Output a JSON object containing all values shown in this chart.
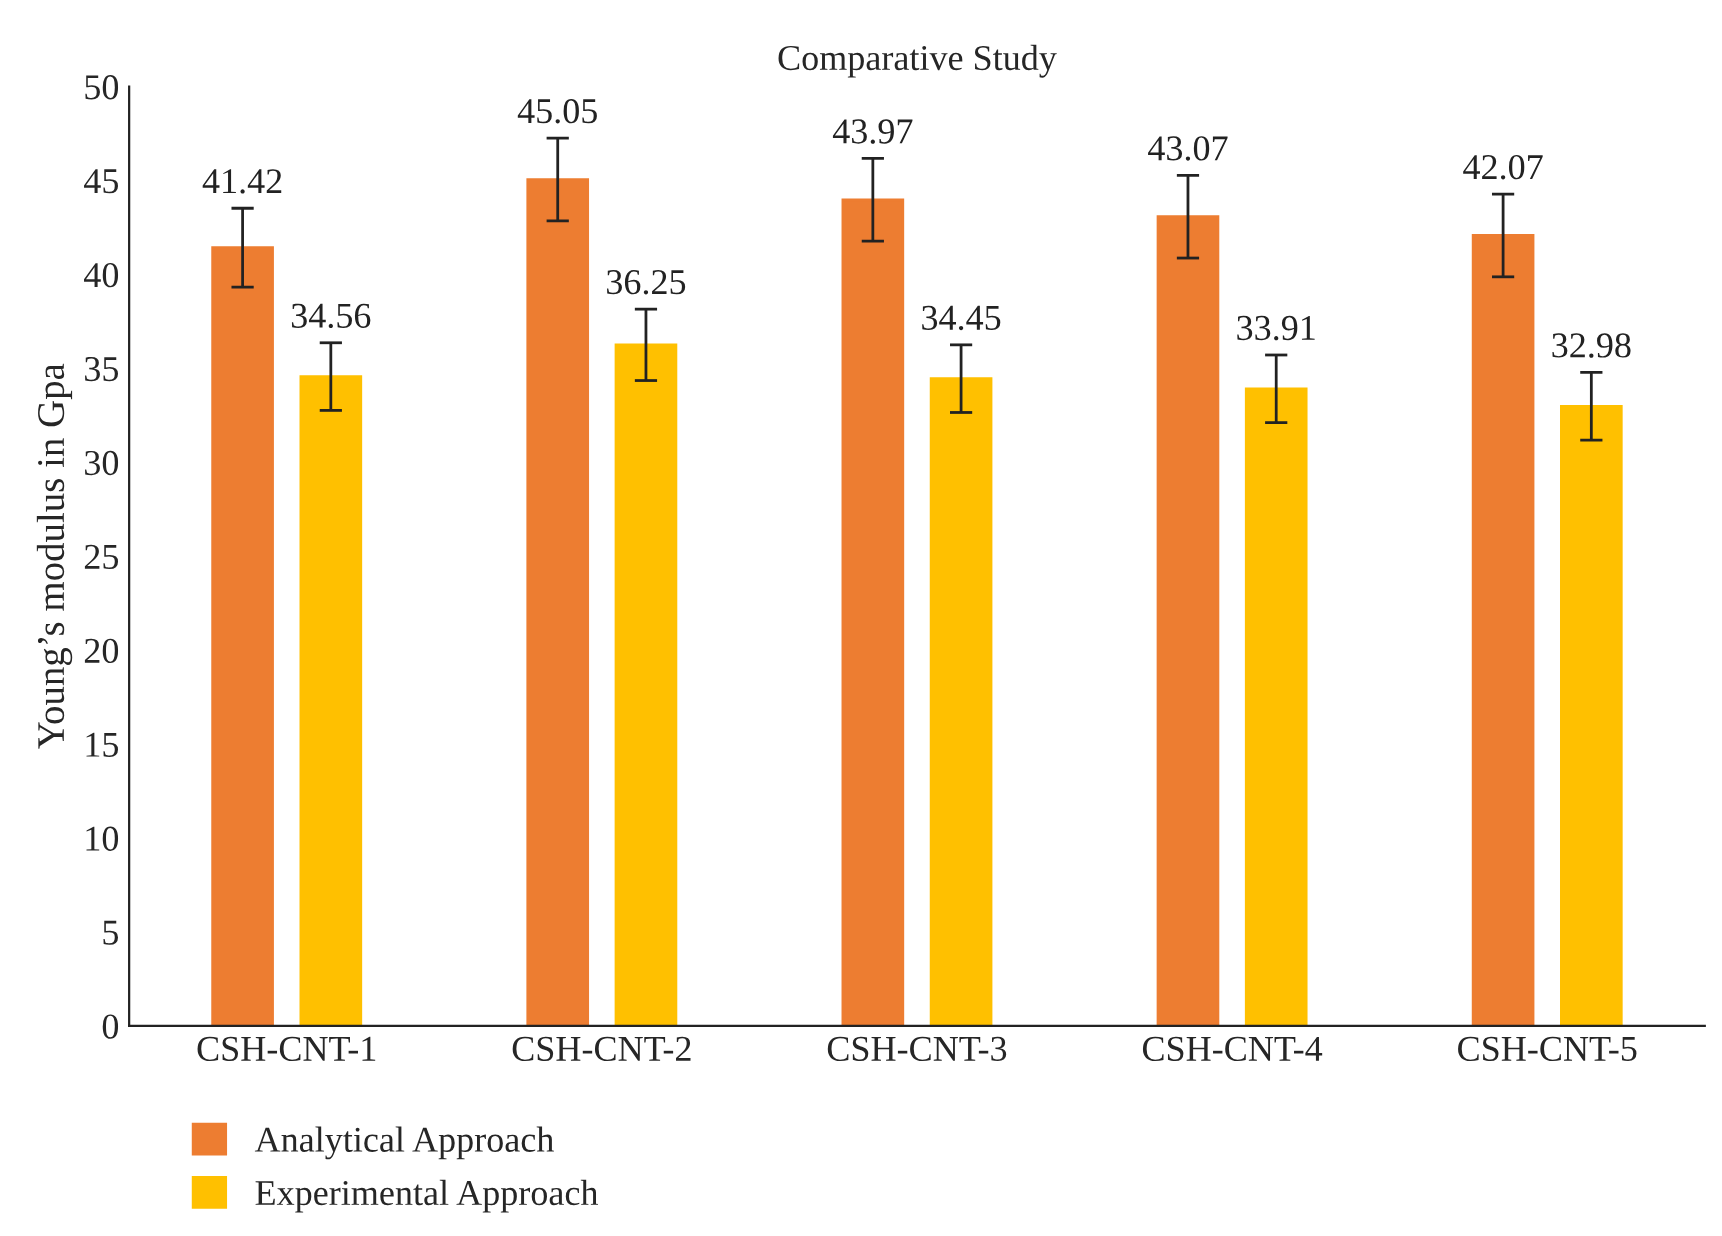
{
  "chart_data": {
    "type": "bar",
    "title": "Comparative Study",
    "ylabel": "Young’s modulus in Gpa",
    "categories": [
      "CSH-CNT-1",
      "CSH-CNT-2",
      "CSH-CNT-3",
      "CSH-CNT-4",
      "CSH-CNT-5"
    ],
    "series": [
      {
        "name": "Analytical Approach",
        "color": "#ed7d31",
        "values": [
          41.42,
          45.05,
          43.97,
          43.07,
          42.07
        ],
        "errors": [
          2.1,
          2.2,
          2.2,
          2.2,
          2.2
        ]
      },
      {
        "name": "Experimental Approach",
        "color": "#ffc000",
        "values": [
          34.56,
          36.25,
          34.45,
          33.91,
          32.98
        ],
        "errors": [
          1.8,
          1.9,
          1.8,
          1.8,
          1.8
        ]
      }
    ],
    "ylim": [
      0,
      50
    ],
    "yticks": [
      0,
      5,
      10,
      15,
      20,
      25,
      30,
      35,
      40,
      45,
      50
    ],
    "data_labels": true,
    "grid": false,
    "legend": "bottom left"
  }
}
